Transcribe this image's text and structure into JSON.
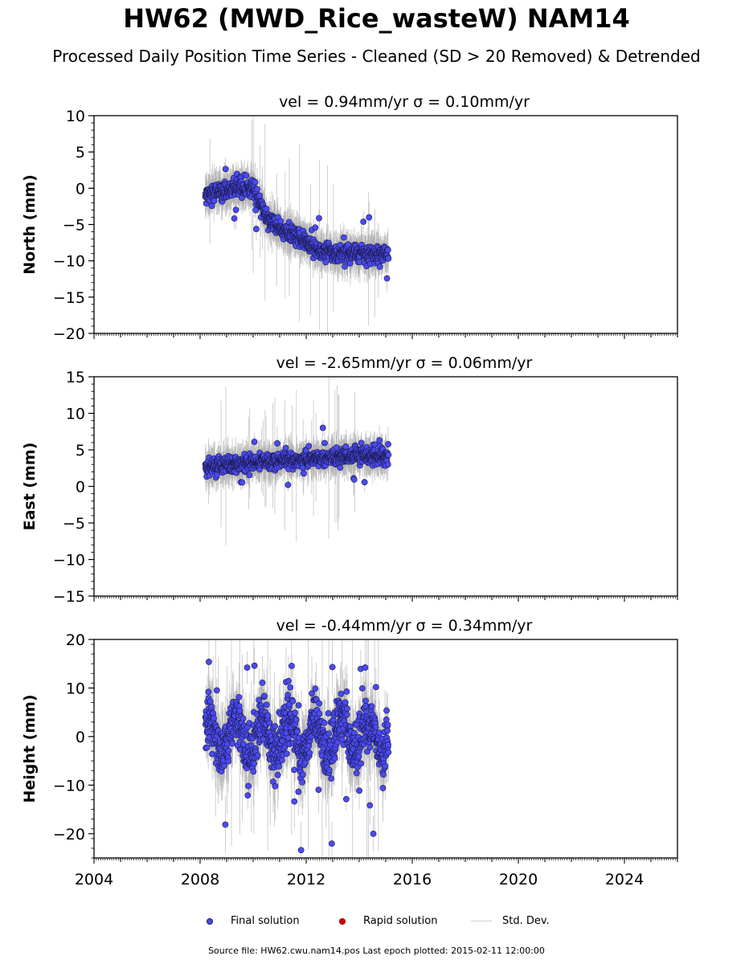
{
  "title": "HW62 (MWD_Rice_wasteW) NAM14",
  "subtitle": "Processed Daily Position Time Series - Cleaned (SD > 20 Removed) & Detrended",
  "footer": "Source file: HW62.cwu.nam14.pos  Last epoch plotted: 2015-02-11 12:00:00",
  "legend": {
    "final": "Final solution",
    "rapid": "Rapid solution",
    "std": "Std. Dev."
  },
  "colors": {
    "final_fill": "#4a4af0",
    "final_edge": "#1a1a4a",
    "rapid": "#dd0000",
    "std": "#b0b0b0"
  },
  "chart_data": [
    {
      "type": "scatter",
      "component": "north",
      "panel_title": "vel = 0.94mm/yr   σ = 0.10mm/yr",
      "ylabel": "North (mm)",
      "ylim": [
        -20,
        10
      ],
      "yticks": [
        -20,
        -15,
        -10,
        -5,
        0,
        5,
        10
      ],
      "xlim": [
        "2004-01-01",
        "2026-01-01"
      ],
      "xticks": [
        "2004",
        "2008",
        "2012",
        "2016",
        "2020",
        "2024"
      ],
      "series": [
        {
          "values_note": "daily positions, approx trend",
          "x": [
            "2008.2",
            "2008.5",
            "2009.0",
            "2009.5",
            "2010.0",
            "2010.5",
            "2011.0",
            "2011.5",
            "2012.0",
            "2012.5",
            "2013.0",
            "2013.5",
            "2014.0",
            "2014.5",
            "2015.1"
          ],
          "y": [
            -1,
            -0.5,
            -0.5,
            0,
            0,
            -4,
            -5.5,
            -6.5,
            -7.5,
            -8.5,
            -9,
            -9,
            -9,
            -9,
            -9
          ]
        }
      ]
    },
    {
      "type": "scatter",
      "component": "east",
      "panel_title": "vel = -2.65mm/yr   σ = 0.06mm/yr",
      "ylabel": "East (mm)",
      "ylim": [
        -15,
        15
      ],
      "yticks": [
        -15,
        -10,
        -5,
        0,
        5,
        10,
        15
      ],
      "xlim": [
        "2004-01-01",
        "2026-01-01"
      ],
      "xticks": [
        "2004",
        "2008",
        "2012",
        "2016",
        "2020",
        "2024"
      ],
      "series": [
        {
          "x": [
            "2008.2",
            "2009.0",
            "2010.0",
            "2011.0",
            "2012.0",
            "2013.0",
            "2014.0",
            "2015.1"
          ],
          "y": [
            2.5,
            3,
            3.2,
            3.5,
            3.7,
            4,
            4.2,
            4
          ]
        }
      ]
    },
    {
      "type": "scatter",
      "component": "height",
      "panel_title": "vel = -0.44mm/yr   σ = 0.34mm/yr",
      "ylabel": "Height (mm)",
      "ylim": [
        -25,
        20
      ],
      "yticks": [
        -20,
        -10,
        0,
        10,
        20
      ],
      "xlim": [
        "2004-01-01",
        "2026-01-01"
      ],
      "xticks": [
        "2004",
        "2008",
        "2012",
        "2016",
        "2020",
        "2024"
      ],
      "series": [
        {
          "x": [
            "2008.2",
            "2009.0",
            "2010.0",
            "2011.0",
            "2012.0",
            "2013.0",
            "2014.0",
            "2015.1"
          ],
          "y": [
            0,
            0,
            0,
            0,
            0,
            0,
            0,
            0
          ]
        }
      ]
    }
  ]
}
